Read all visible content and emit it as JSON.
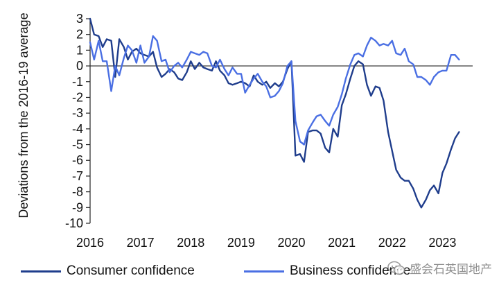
{
  "chart_data": {
    "type": "line",
    "ylabel": "Deviations from the 2016-19 average",
    "ylim": [
      -10,
      3
    ],
    "yticks": [
      3,
      2,
      1,
      0,
      -1,
      -2,
      -3,
      -4,
      -5,
      -6,
      -7,
      -8,
      -9,
      -10
    ],
    "xticks": [
      {
        "label": "2016",
        "x": 2016
      },
      {
        "label": "2017",
        "x": 2017
      },
      {
        "label": "2018",
        "x": 2018
      },
      {
        "label": "2019",
        "x": 2019
      },
      {
        "label": "2020",
        "x": 2020
      },
      {
        "label": "2021",
        "x": 2021
      },
      {
        "label": "2022",
        "x": 2022
      },
      {
        "label": "2023",
        "x": 2023
      }
    ],
    "xlim": [
      2016,
      2023.6
    ],
    "zero_line": true,
    "legend_position": "bottom",
    "series": [
      {
        "name": "Consumer confidence",
        "color": "#1f3d8c",
        "x": [
          2016.0,
          2016.08,
          2016.17,
          2016.25,
          2016.33,
          2016.42,
          2016.5,
          2016.58,
          2016.67,
          2016.75,
          2016.83,
          2016.92,
          2017.0,
          2017.08,
          2017.17,
          2017.25,
          2017.33,
          2017.42,
          2017.5,
          2017.58,
          2017.67,
          2017.75,
          2017.83,
          2017.92,
          2018.0,
          2018.08,
          2018.17,
          2018.25,
          2018.33,
          2018.42,
          2018.5,
          2018.58,
          2018.67,
          2018.75,
          2018.83,
          2018.92,
          2019.0,
          2019.08,
          2019.17,
          2019.25,
          2019.33,
          2019.42,
          2019.5,
          2019.58,
          2019.67,
          2019.75,
          2019.83,
          2019.92,
          2020.0,
          2020.08,
          2020.17,
          2020.25,
          2020.33,
          2020.42,
          2020.5,
          2020.58,
          2020.67,
          2020.75,
          2020.83,
          2020.92,
          2021.0,
          2021.08,
          2021.17,
          2021.25,
          2021.33,
          2021.42,
          2021.5,
          2021.58,
          2021.67,
          2021.75,
          2021.83,
          2021.92,
          2022.0,
          2022.08,
          2022.17,
          2022.25,
          2022.33,
          2022.42,
          2022.5,
          2022.58,
          2022.67,
          2022.75,
          2022.83,
          2022.92,
          2023.0,
          2023.08,
          2023.17,
          2023.25,
          2023.33
        ],
        "values": [
          3.0,
          2.0,
          1.9,
          1.2,
          1.7,
          1.6,
          -0.7,
          1.7,
          1.2,
          0.4,
          0.9,
          1.1,
          0.8,
          0.7,
          0.6,
          0.9,
          -0.1,
          -0.7,
          -0.5,
          -0.2,
          -0.4,
          -0.8,
          -0.9,
          -0.4,
          0.3,
          -0.2,
          0.2,
          -0.1,
          -0.2,
          -0.3,
          0.3,
          -0.3,
          -0.6,
          -1.1,
          -1.2,
          -1.1,
          -1.0,
          -1.1,
          -1.3,
          -0.6,
          -1.0,
          -1.2,
          -1.0,
          -1.4,
          -1.1,
          -1.3,
          -1.0,
          -0.2,
          0.3,
          -5.7,
          -5.6,
          -6.1,
          -4.2,
          -4.1,
          -4.1,
          -4.3,
          -5.2,
          -5.5,
          -4.0,
          -4.5,
          -2.5,
          -1.8,
          -0.8,
          0.0,
          0.3,
          0.1,
          -1.2,
          -1.9,
          -1.3,
          -1.4,
          -2.2,
          -4.2,
          -5.4,
          -6.6,
          -7.1,
          -7.3,
          -7.3,
          -7.8,
          -8.5,
          -9.0,
          -8.5,
          -7.9,
          -7.6,
          -8.1,
          -6.8,
          -6.2,
          -5.3,
          -4.6,
          -4.2
        ]
      },
      {
        "name": "Business confidence",
        "color": "#4a6fe3",
        "x": [
          2016.0,
          2016.08,
          2016.17,
          2016.25,
          2016.33,
          2016.42,
          2016.5,
          2016.58,
          2016.67,
          2016.75,
          2016.83,
          2016.92,
          2017.0,
          2017.08,
          2017.17,
          2017.25,
          2017.33,
          2017.42,
          2017.5,
          2017.58,
          2017.67,
          2017.75,
          2017.83,
          2017.92,
          2018.0,
          2018.08,
          2018.17,
          2018.25,
          2018.33,
          2018.42,
          2018.5,
          2018.58,
          2018.67,
          2018.75,
          2018.83,
          2018.92,
          2019.0,
          2019.08,
          2019.17,
          2019.25,
          2019.33,
          2019.42,
          2019.5,
          2019.58,
          2019.67,
          2019.75,
          2019.83,
          2019.92,
          2020.0,
          2020.08,
          2020.17,
          2020.25,
          2020.33,
          2020.42,
          2020.5,
          2020.58,
          2020.67,
          2020.75,
          2020.83,
          2020.92,
          2021.0,
          2021.08,
          2021.17,
          2021.25,
          2021.33,
          2021.42,
          2021.5,
          2021.58,
          2021.67,
          2021.75,
          2021.83,
          2021.92,
          2022.0,
          2022.08,
          2022.17,
          2022.25,
          2022.33,
          2022.42,
          2022.5,
          2022.58,
          2022.67,
          2022.75,
          2022.83,
          2022.92,
          2023.0,
          2023.08,
          2023.17,
          2023.25,
          2023.33
        ],
        "values": [
          1.5,
          0.4,
          1.6,
          0.3,
          0.3,
          -1.6,
          0.0,
          -0.6,
          0.5,
          1.3,
          1.0,
          0.2,
          1.3,
          0.2,
          0.6,
          1.9,
          1.6,
          0.3,
          0.4,
          -0.4,
          0.0,
          0.2,
          -0.1,
          0.4,
          0.9,
          0.8,
          0.7,
          0.9,
          0.8,
          0.0,
          -0.1,
          0.4,
          -0.2,
          -0.6,
          -0.1,
          -0.5,
          -0.5,
          -1.7,
          -1.2,
          -0.8,
          -0.5,
          -1.0,
          -1.3,
          -2.0,
          -1.9,
          -1.6,
          -1.1,
          0.0,
          0.3,
          -3.5,
          -4.8,
          -5.0,
          -4.1,
          -3.6,
          -3.2,
          -3.1,
          -3.5,
          -3.8,
          -3.1,
          -2.6,
          -1.8,
          -0.8,
          0.1,
          0.7,
          0.8,
          0.6,
          1.3,
          1.8,
          1.6,
          1.3,
          1.4,
          1.3,
          1.6,
          0.8,
          0.7,
          1.1,
          0.3,
          0.1,
          -0.7,
          -0.7,
          -0.9,
          -1.2,
          -0.7,
          -0.4,
          -0.3,
          -0.3,
          0.7,
          0.7,
          0.4
        ]
      }
    ]
  },
  "legend": {
    "items": [
      {
        "label": "Consumer confidence",
        "color": "#1f3d8c"
      },
      {
        "label": "Business confidence",
        "color": "#4a6fe3"
      }
    ]
  },
  "watermark": {
    "text": "盛会石英国地产",
    "icon": "wechat-icon"
  }
}
